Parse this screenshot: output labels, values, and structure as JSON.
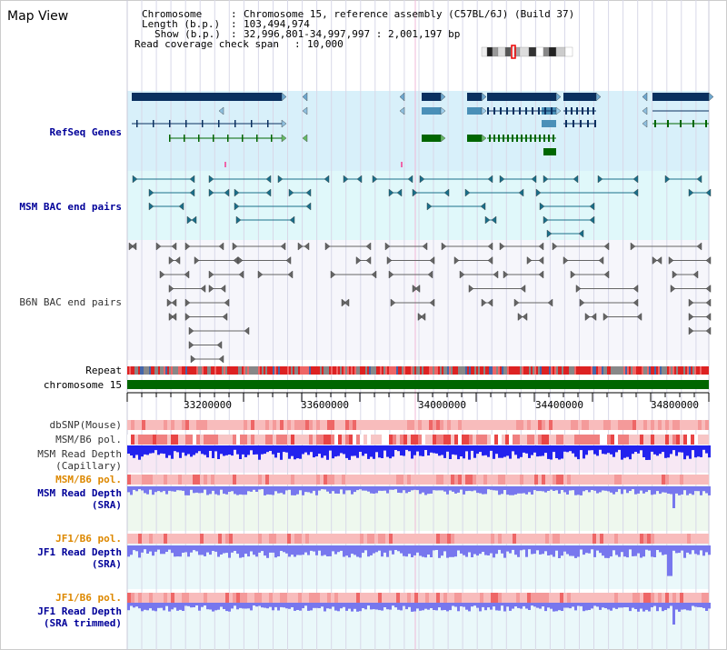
{
  "title": "Map View",
  "info": {
    "chromosome_label": "Chromosome",
    "chromosome_value": "Chromosome 15, reference assembly (C57BL/6J) (Build 37)",
    "length_label": "Length (b.p.)",
    "length_value": "103,494,974",
    "show_label": "Show (b.p.)",
    "show_value": "32,996,801-34,997,997 : 2,001,197 bp",
    "coverage_label": "Read coverage check span",
    "coverage_value": "10,000"
  },
  "tracks": {
    "refseq": "RefSeq Genes",
    "msm_bac": "MSM BAC end pairs",
    "b6n_bac": "B6N BAC end pairs",
    "repeat": "Repeat",
    "chromosome": "chromosome 15",
    "dbsnp": "dbSNP(Mouse)",
    "msm_b6_pol_1": "MSM/B6 pol.",
    "msm_read_depth_cap_1": "MSM Read Depth",
    "msm_read_depth_cap_2": "(Capillary)",
    "msm_b6_pol_2": "MSM/B6 pol.",
    "msm_read_depth_sra_1": "MSM Read Depth",
    "msm_read_depth_sra_2": "(SRA)",
    "jf1_b6_pol_1": "JF1/B6 pol.",
    "jf1_read_depth_sra_1": "JF1 Read Depth",
    "jf1_read_depth_sra_2": "(SRA)",
    "jf1_b6_pol_2": "JF1/B6 pol.",
    "jf1_read_depth_trim_1": "JF1 Read Depth",
    "jf1_read_depth_trim_2": "(SRA trimmed)"
  },
  "axis": {
    "ticks": [
      "33200000",
      "33600000",
      "34000000",
      "34400000",
      "34800000"
    ]
  },
  "colors": {
    "refseq_bg": "#d8f0fa",
    "msm_bg": "#e0f8fa",
    "gene_dark": "#0a3060",
    "gene_mid": "#4a90b8",
    "gene_green": "#006600",
    "chromosome_bar": "#006600",
    "depth_blue": "#2222ee",
    "depth_light_blue": "#7777ee"
  }
}
